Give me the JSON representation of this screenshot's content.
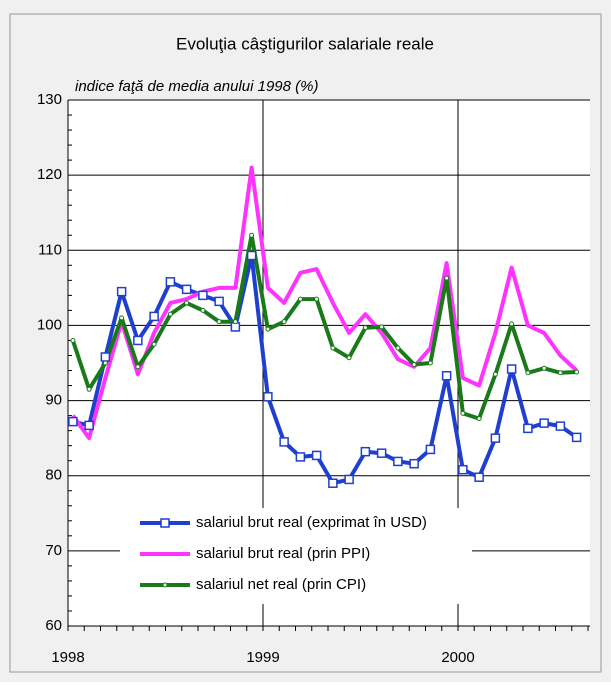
{
  "chart_data": {
    "type": "line",
    "title": "Evoluţia câştigurilor salariale reale",
    "subtitle": "indice faţă de media anului 1998 (%)",
    "categories": [
      "1998",
      null,
      null,
      null,
      null,
      null,
      null,
      null,
      null,
      null,
      null,
      null,
      "1999",
      null,
      null,
      null,
      null,
      null,
      null,
      null,
      null,
      null,
      null,
      null,
      "2000",
      null,
      null,
      null,
      null,
      null,
      null,
      null
    ],
    "series": [
      {
        "name": "salariul brut real (exprimat în USD)",
        "color": "#1f3fd0",
        "marker": "square",
        "values": [
          87.2,
          86.7,
          95.8,
          104.5,
          98,
          101.2,
          105.8,
          104.8,
          104,
          103.2,
          99.8,
          109.3,
          90.5,
          84.5,
          82.5,
          82.7,
          79,
          79.5,
          83.2,
          83,
          81.9,
          81.6,
          83.5,
          93.3,
          80.8,
          79.8,
          85,
          94.2,
          86.3,
          87,
          86.6,
          85.1
        ]
      },
      {
        "name": "salariul brut real (prin PPI)",
        "color": "#ff33ff",
        "marker": "none",
        "values": [
          88,
          85,
          93,
          100.5,
          93.5,
          99,
          103,
          103.5,
          104.5,
          105,
          105,
          121,
          105,
          103,
          107,
          107.5,
          103,
          99,
          101.5,
          99,
          95.5,
          94.5,
          97,
          108.3,
          93,
          92,
          99,
          107.7,
          100,
          99,
          96,
          94
        ]
      },
      {
        "name": "salariul net real (prin CPI)",
        "color": "#1a7a1a",
        "marker": "dot",
        "values": [
          98,
          91.5,
          95,
          101,
          94.5,
          97.5,
          101.5,
          103,
          102,
          100.5,
          100.5,
          112,
          99.5,
          100.5,
          103.5,
          103.5,
          97,
          95.7,
          99.7,
          99.8,
          97,
          94.8,
          95,
          106.3,
          88.3,
          87.6,
          93.5,
          100.2,
          93.7,
          94.3,
          93.7,
          93.8
        ]
      }
    ],
    "ylim": [
      60,
      130
    ],
    "yticks": [
      60,
      70,
      80,
      90,
      100,
      110,
      120,
      130
    ],
    "grid": true
  }
}
